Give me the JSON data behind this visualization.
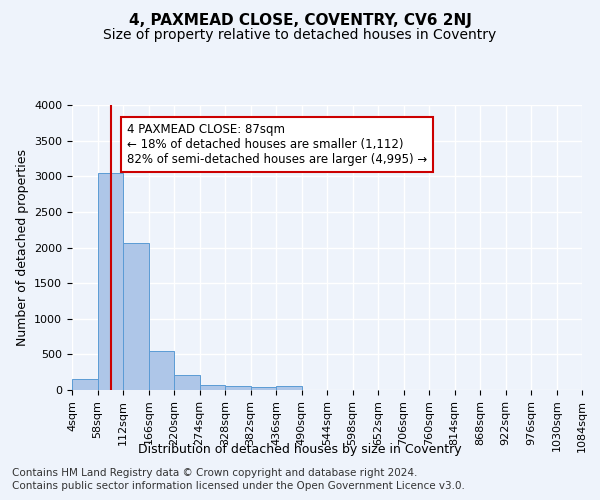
{
  "title": "4, PAXMEAD CLOSE, COVENTRY, CV6 2NJ",
  "subtitle": "Size of property relative to detached houses in Coventry",
  "xlabel": "Distribution of detached houses by size in Coventry",
  "ylabel": "Number of detached properties",
  "footer_line1": "Contains HM Land Registry data © Crown copyright and database right 2024.",
  "footer_line2": "Contains public sector information licensed under the Open Government Licence v3.0.",
  "bin_labels": [
    "4sqm",
    "58sqm",
    "112sqm",
    "166sqm",
    "220sqm",
    "274sqm",
    "328sqm",
    "382sqm",
    "436sqm",
    "490sqm",
    "544sqm",
    "598sqm",
    "652sqm",
    "706sqm",
    "760sqm",
    "814sqm",
    "868sqm",
    "922sqm",
    "976sqm",
    "1030sqm",
    "1084sqm"
  ],
  "bin_edges": [
    4,
    58,
    112,
    166,
    220,
    274,
    328,
    382,
    436,
    490,
    544,
    598,
    652,
    706,
    760,
    814,
    868,
    922,
    976,
    1030,
    1084
  ],
  "bar_heights": [
    150,
    3050,
    2060,
    550,
    215,
    75,
    55,
    45,
    55,
    0,
    0,
    0,
    0,
    0,
    0,
    0,
    0,
    0,
    0,
    0
  ],
  "bar_color": "#aec6e8",
  "bar_edge_color": "#5b9bd5",
  "vline_x": 87,
  "vline_color": "#cc0000",
  "ylim": [
    0,
    4000
  ],
  "yticks": [
    0,
    500,
    1000,
    1500,
    2000,
    2500,
    3000,
    3500,
    4000
  ],
  "annotation_text": "4 PAXMEAD CLOSE: 87sqm\n← 18% of detached houses are smaller (1,112)\n82% of semi-detached houses are larger (4,995) →",
  "annotation_box_color": "#ffffff",
  "annotation_border_color": "#cc0000",
  "bg_color": "#eef3fb",
  "grid_color": "#ffffff",
  "title_fontsize": 11,
  "subtitle_fontsize": 10,
  "axis_label_fontsize": 9,
  "tick_fontsize": 8,
  "annotation_fontsize": 8.5,
  "footer_fontsize": 7.5
}
